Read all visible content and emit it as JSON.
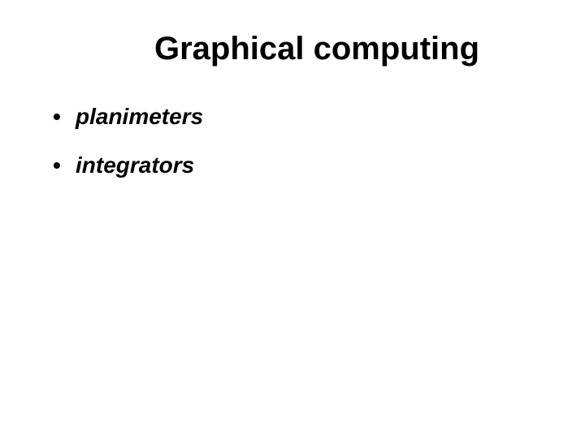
{
  "slide": {
    "title": "Graphical computing",
    "bullets": [
      "planimeters",
      "integrators"
    ],
    "styling": {
      "background_color": "#ffffff",
      "title_fontsize": 40,
      "title_fontweight": "bold",
      "title_color": "#000000",
      "bullet_fontsize": 28,
      "bullet_fontweight": "bold",
      "bullet_fontstyle": "italic",
      "bullet_color": "#000000",
      "bullet_marker": "•",
      "font_family": "Arial"
    }
  }
}
